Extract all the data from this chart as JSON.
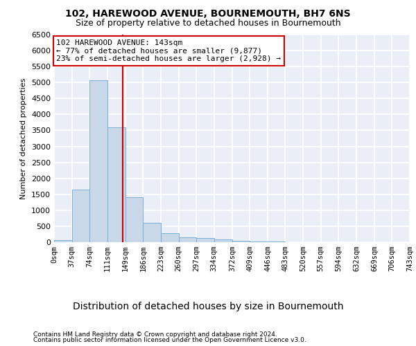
{
  "title1": "102, HAREWOOD AVENUE, BOURNEMOUTH, BH7 6NS",
  "title2": "Size of property relative to detached houses in Bournemouth",
  "xlabel": "Distribution of detached houses by size in Bournemouth",
  "ylabel": "Number of detached properties",
  "footnote1": "Contains HM Land Registry data © Crown copyright and database right 2024.",
  "footnote2": "Contains public sector information licensed under the Open Government Licence v3.0.",
  "annotation_line1": "102 HAREWOOD AVENUE: 143sqm",
  "annotation_line2": "← 77% of detached houses are smaller (9,877)",
  "annotation_line3": "23% of semi-detached houses are larger (2,928) →",
  "property_size": 143,
  "bar_color": "#c8d8e8",
  "bar_edge_color": "#7aafd4",
  "vline_color": "#cc0000",
  "annotation_box_color": "#cc0000",
  "bin_edges": [
    0,
    37,
    74,
    111,
    149,
    186,
    223,
    260,
    297,
    334,
    372,
    409,
    446,
    483,
    520,
    557,
    594,
    632,
    669,
    706,
    743
  ],
  "bar_heights": [
    75,
    1640,
    5060,
    3600,
    1400,
    600,
    290,
    150,
    120,
    90,
    50,
    20,
    15,
    10,
    5,
    3,
    2,
    1,
    1,
    0
  ],
  "ylim": [
    0,
    6500
  ],
  "yticks": [
    0,
    500,
    1000,
    1500,
    2000,
    2500,
    3000,
    3500,
    4000,
    4500,
    5000,
    5500,
    6000,
    6500
  ],
  "xtick_labels": [
    "0sqm",
    "37sqm",
    "74sqm",
    "111sqm",
    "149sqm",
    "186sqm",
    "223sqm",
    "260sqm",
    "297sqm",
    "334sqm",
    "372sqm",
    "409sqm",
    "446sqm",
    "483sqm",
    "520sqm",
    "557sqm",
    "594sqm",
    "632sqm",
    "669sqm",
    "706sqm",
    "743sqm"
  ],
  "background_color": "#eaeff7",
  "grid_color": "#ffffff",
  "fig_background": "#ffffff",
  "title1_fontsize": 10,
  "title2_fontsize": 9,
  "ylabel_fontsize": 8,
  "xlabel_fontsize": 10,
  "footnote_fontsize": 6.5,
  "tick_fontsize": 7.5,
  "annot_fontsize": 8
}
